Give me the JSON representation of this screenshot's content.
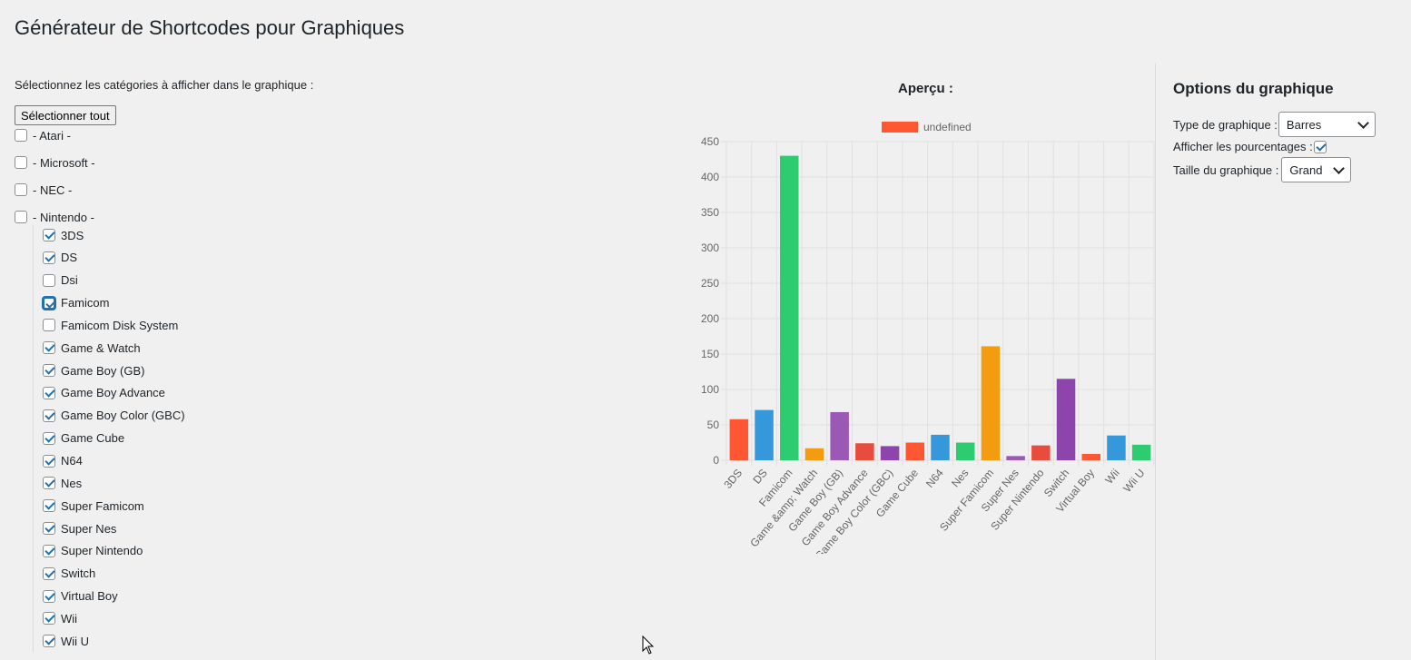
{
  "page": {
    "title": "Générateur de Shortcodes pour Graphiques",
    "instruction": "Sélectionnez les catégories à afficher dans le graphique :",
    "select_all_label": "Sélectionner tout"
  },
  "categories": [
    {
      "label": "- Atari -",
      "checked": false
    },
    {
      "label": "- Microsoft -",
      "checked": false
    },
    {
      "label": "- NEC -",
      "checked": false
    },
    {
      "label": "- Nintendo -",
      "checked": false
    }
  ],
  "nintendo_items": [
    {
      "label": "3DS",
      "checked": true
    },
    {
      "label": "DS",
      "checked": true
    },
    {
      "label": "Dsi",
      "checked": false
    },
    {
      "label": "Famicom",
      "checked": true,
      "focused": true
    },
    {
      "label": "Famicom Disk System",
      "checked": false
    },
    {
      "label": "Game & Watch",
      "checked": true
    },
    {
      "label": "Game Boy (GB)",
      "checked": true
    },
    {
      "label": "Game Boy Advance",
      "checked": true
    },
    {
      "label": "Game Boy Color (GBC)",
      "checked": true
    },
    {
      "label": "Game Cube",
      "checked": true
    },
    {
      "label": "N64",
      "checked": true
    },
    {
      "label": "Nes",
      "checked": true
    },
    {
      "label": "Super Famicom",
      "checked": true
    },
    {
      "label": "Super Nes",
      "checked": true
    },
    {
      "label": "Super Nintendo",
      "checked": true
    },
    {
      "label": "Switch",
      "checked": true
    },
    {
      "label": "Virtual Boy",
      "checked": true
    },
    {
      "label": "Wii",
      "checked": true
    },
    {
      "label": "Wii U",
      "checked": true
    }
  ],
  "preview": {
    "title": "Aperçu :"
  },
  "chart_data": {
    "type": "bar",
    "legend": {
      "label": "undefined",
      "color": "#ff5733",
      "placement": "top"
    },
    "categories": [
      "3DS",
      "DS",
      "Famicom",
      "Game &amp; Watch",
      "Game Boy (GB)",
      "Game Boy Advance",
      "Game Boy Color (GBC)",
      "Game Cube",
      "N64",
      "Nes",
      "Super Famicom",
      "Super Nes",
      "Super Nintendo",
      "Switch",
      "Virtual Boy",
      "Wii",
      "Wii U"
    ],
    "values": [
      58,
      71,
      430,
      17,
      68,
      24,
      20,
      25,
      36,
      25,
      161,
      6,
      21,
      115,
      9,
      35,
      22
    ],
    "colors": [
      "#ff5733",
      "#3498db",
      "#2ecc71",
      "#f39c12",
      "#9b59b6",
      "#e74c3c",
      "#8e44ad",
      "#ff5733",
      "#3498db",
      "#2ecc71",
      "#f39c12",
      "#9b59b6",
      "#e74c3c",
      "#8e44ad",
      "#ff5733",
      "#3498db",
      "#2ecc71"
    ],
    "ylim": [
      0,
      450
    ],
    "yticks": [
      0,
      50,
      100,
      150,
      200,
      250,
      300,
      350,
      400,
      450
    ],
    "grid": true
  },
  "options": {
    "title": "Options du graphique",
    "chart_type_label": "Type de graphique :",
    "chart_type_value": "Barres",
    "show_percent_label": "Afficher les pourcentages :",
    "show_percent_checked": true,
    "size_label": "Taille du graphique :",
    "size_value": "Grand"
  }
}
